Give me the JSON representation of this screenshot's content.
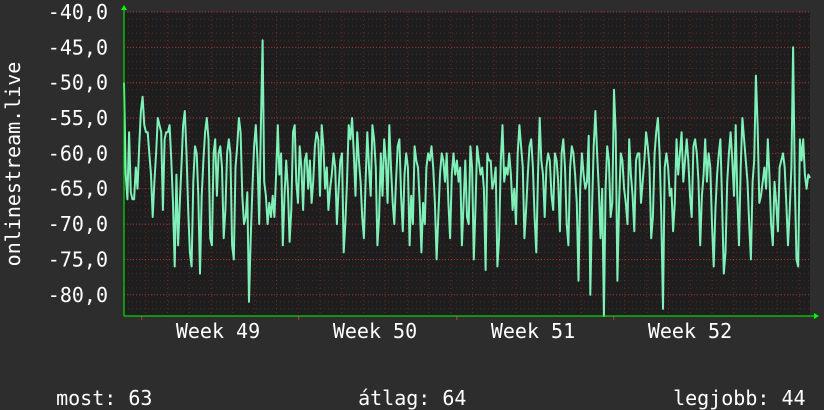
{
  "chart_data": {
    "type": "line",
    "ylabel": "onlinestream.live",
    "y_ticks": [
      "-40,0",
      "-45,0",
      "-50,0",
      "-55,0",
      "-60,0",
      "-65,0",
      "-70,0",
      "-75,0",
      "-80,0"
    ],
    "ylim": [
      -83,
      -40
    ],
    "x_ticks": [
      "Week 49",
      "Week 50",
      "Week 51",
      "Week 52"
    ],
    "grid": true,
    "colors": {
      "line": "#7ef0b8",
      "plot_bg": "#1e1e1e",
      "page_bg": "#2d2d2d",
      "grid": "#cc3333",
      "axis": "#00ff00",
      "text": "#ffffff"
    },
    "series": [
      {
        "values": [
          -50,
          -63,
          -66.5,
          -57,
          -65.5,
          -66.5,
          -66.5,
          -62,
          -65,
          -59,
          -54,
          -52,
          -56,
          -57,
          -57,
          -60,
          -63,
          -69,
          -64,
          -60,
          -55,
          -56,
          -57,
          -68,
          -58,
          -57,
          -57,
          -56,
          -61,
          -67,
          -76,
          -63,
          -73,
          -67,
          -62,
          -56,
          -54,
          -60,
          -68,
          -74,
          -76,
          -64,
          -59,
          -60,
          -66,
          -77,
          -66,
          -61,
          -57,
          -55,
          -58,
          -72,
          -73,
          -60,
          -58,
          -66,
          -60,
          -59,
          -62,
          -72,
          -68,
          -60,
          -58,
          -60,
          -73,
          -75,
          -62,
          -59,
          -55,
          -57,
          -66,
          -70,
          -69,
          -65.5,
          -81,
          -72,
          -65,
          -59,
          -56,
          -61,
          -70,
          -56,
          -44,
          -64,
          -66,
          -70,
          -67,
          -69,
          -66,
          -69,
          -63,
          -56,
          -63,
          -60,
          -73,
          -66,
          -61,
          -65,
          -72.5,
          -68,
          -57,
          -56,
          -64,
          -67,
          -59,
          -62,
          -68,
          -61,
          -60,
          -65,
          -61,
          -67,
          -64,
          -59,
          -57,
          -58,
          -66,
          -56,
          -59,
          -65,
          -62,
          -68,
          -65,
          -63,
          -60,
          -62,
          -70,
          -65,
          -61,
          -60,
          -74,
          -70,
          -64,
          -56,
          -58,
          -55,
          -60,
          -66,
          -57,
          -61,
          -64,
          -69,
          -72,
          -64,
          -57,
          -62,
          -66,
          -56,
          -58,
          -62,
          -73,
          -69,
          -60,
          -66,
          -58,
          -61,
          -67,
          -56,
          -62,
          -67,
          -70,
          -64,
          -59,
          -58,
          -66,
          -71,
          -63,
          -60,
          -62,
          -73,
          -66,
          -70,
          -59,
          -61,
          -62,
          -67,
          -74,
          -67,
          -70,
          -62,
          -60,
          -61,
          -59,
          -62,
          -67,
          -75,
          -69,
          -63,
          -60,
          -61,
          -64,
          -60,
          -67,
          -72,
          -63,
          -60,
          -63,
          -61,
          -64,
          -62,
          -73,
          -67,
          -61,
          -69,
          -70,
          -59,
          -62,
          -75,
          -68,
          -59,
          -61,
          -63,
          -62,
          -65,
          -76.5,
          -60,
          -61,
          -61,
          -65,
          -64,
          -62,
          -76,
          -72,
          -61,
          -56,
          -64,
          -62,
          -63,
          -60,
          -63,
          -68,
          -65,
          -70,
          -60,
          -56,
          -59,
          -62,
          -72,
          -68,
          -63,
          -59,
          -58,
          -62,
          -69,
          -74,
          -63,
          -55,
          -61,
          -63,
          -69,
          -62,
          -60,
          -61,
          -66,
          -68,
          -60,
          -61,
          -64,
          -71,
          -60,
          -58,
          -62,
          -70,
          -73,
          -62,
          -59,
          -60,
          -63,
          -67,
          -78,
          -65,
          -60,
          -63,
          -65,
          -64,
          -57.5,
          -80,
          -68,
          -59,
          -54,
          -60,
          -65,
          -72,
          -65,
          -83,
          -65,
          -59,
          -61,
          -69,
          -67,
          -51,
          -57,
          -78,
          -67,
          -60,
          -61,
          -65,
          -67,
          -70,
          -58,
          -63,
          -66,
          -71,
          -61,
          -60,
          -60,
          -67,
          -64,
          -61,
          -57,
          -59,
          -62,
          -72,
          -69,
          -60,
          -57,
          -55,
          -60,
          -69,
          -82,
          -62,
          -60,
          -62,
          -66,
          -65,
          -71,
          -67,
          -58,
          -63,
          -60,
          -57,
          -64,
          -61,
          -58,
          -61,
          -66,
          -69,
          -59,
          -58,
          -60,
          -64,
          -73,
          -66,
          -63,
          -58,
          -64,
          -60,
          -62,
          -70,
          -76,
          -68,
          -63,
          -60,
          -58,
          -67,
          -77,
          -74,
          -64,
          -60,
          -57,
          -61,
          -66,
          -56,
          -66,
          -73,
          -62,
          -55,
          -58,
          -61,
          -64,
          -70,
          -75,
          -64,
          -61,
          -49,
          -56,
          -67,
          -66,
          -64,
          -62,
          -65,
          -58,
          -63,
          -70,
          -73,
          -64,
          -67,
          -71,
          -62,
          -61,
          -60,
          -62,
          -67,
          -73,
          -68,
          -62,
          -45,
          -64,
          -75,
          -76,
          -58,
          -61,
          -58,
          -63,
          -65,
          -63,
          -63.5
        ]
      }
    ],
    "stats": {
      "now_label": "most:",
      "now_value": "63",
      "avg_label": "átlag:",
      "avg_value": "64",
      "best_label": "legjobb:",
      "best_value": "44"
    }
  }
}
